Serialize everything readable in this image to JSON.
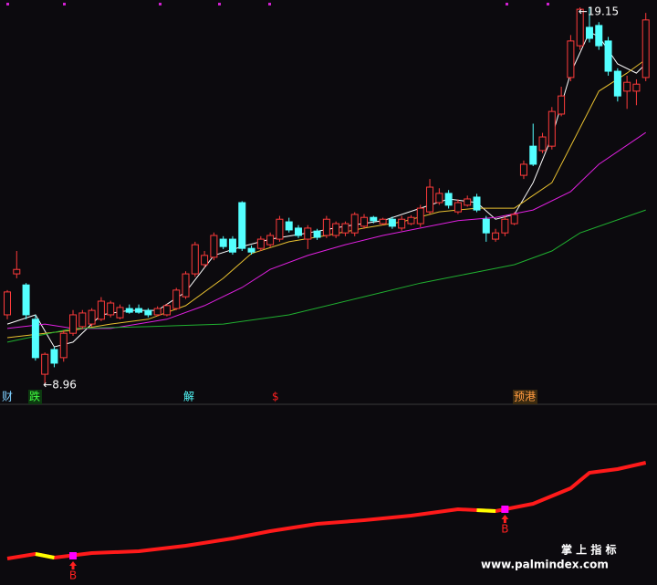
{
  "chart_data": {
    "type": "candlestick",
    "up_color": "#ff3b3b",
    "down_color": "#54ffff",
    "ylim": [
      8.47,
      19.35
    ],
    "open": [
      10.82,
      11.93,
      11.63,
      10.7,
      9.21,
      9.88,
      9.66,
      10.32,
      10.5,
      10.57,
      10.7,
      10.82,
      10.74,
      10.99,
      10.99,
      10.94,
      10.82,
      10.82,
      10.99,
      11.31,
      11.93,
      12.18,
      12.38,
      12.87,
      12.87,
      13.86,
      12.62,
      12.62,
      12.72,
      12.87,
      13.34,
      13.17,
      12.87,
      13.09,
      12.97,
      12.97,
      13.04,
      13.04,
      13.22,
      13.46,
      13.29,
      13.41,
      13.17,
      13.29,
      13.29,
      13.61,
      13.86,
      14.11,
      13.61,
      13.79,
      14.01,
      13.41,
      12.87,
      13.04,
      13.29,
      14.6,
      15.39,
      15.27,
      15.39,
      16.26,
      17.25,
      18.11,
      18.61,
      18.66,
      18.24,
      17.42,
      16.88,
      16.88,
      17.25
    ],
    "high": [
      11.49,
      12.55,
      11.68,
      10.82,
      9.8,
      9.95,
      10.4,
      10.95,
      10.95,
      11.0,
      11.3,
      11.2,
      11.1,
      11.1,
      11.1,
      11.0,
      11.05,
      11.12,
      11.55,
      12.0,
      12.8,
      12.55,
      13.05,
      12.95,
      12.95,
      13.9,
      12.7,
      12.95,
      13.05,
      13.5,
      13.45,
      13.25,
      13.25,
      13.15,
      13.5,
      13.35,
      13.35,
      13.6,
      13.55,
      13.5,
      13.45,
      13.48,
      13.5,
      13.52,
      13.8,
      14.5,
      14.25,
      14.2,
      13.95,
      14.05,
      14.1,
      13.5,
      13.15,
      13.5,
      13.6,
      15.0,
      16.0,
      15.75,
      16.45,
      17.0,
      18.4,
      19.15,
      19.15,
      18.75,
      18.35,
      17.5,
      17.3,
      17.2,
      19.0
    ],
    "low": [
      10.7,
      11.81,
      10.7,
      9.58,
      8.96,
      9.4,
      9.55,
      10.25,
      10.45,
      10.5,
      10.65,
      10.75,
      10.7,
      10.85,
      10.85,
      10.75,
      10.78,
      10.78,
      10.95,
      11.25,
      11.85,
      12.1,
      12.3,
      12.6,
      12.45,
      12.55,
      12.45,
      12.55,
      12.65,
      12.8,
      13.05,
      12.9,
      12.6,
      12.85,
      12.9,
      12.9,
      12.95,
      12.95,
      13.15,
      13.3,
      13.25,
      13.15,
      13.1,
      13.25,
      13.2,
      13.55,
      13.8,
      13.7,
      13.55,
      13.75,
      13.6,
      12.8,
      12.8,
      12.95,
      13.25,
      14.5,
      14.85,
      15.2,
      15.3,
      16.2,
      17.15,
      18.0,
      18.2,
      18.0,
      17.3,
      16.6,
      16.4,
      16.5,
      17.15
    ],
    "close": [
      11.44,
      12.05,
      10.82,
      9.66,
      9.75,
      9.51,
      10.32,
      10.82,
      10.87,
      10.94,
      11.19,
      11.14,
      11.02,
      10.89,
      10.89,
      10.82,
      10.99,
      11.07,
      11.49,
      11.93,
      12.72,
      12.43,
      12.97,
      12.67,
      12.52,
      12.62,
      12.52,
      12.87,
      12.97,
      13.41,
      13.12,
      12.97,
      13.17,
      12.92,
      13.41,
      13.29,
      13.29,
      13.54,
      13.46,
      13.37,
      13.41,
      13.22,
      13.41,
      13.46,
      13.71,
      14.28,
      14.11,
      13.79,
      13.86,
      13.96,
      13.66,
      13.04,
      13.04,
      13.41,
      13.54,
      14.9,
      14.9,
      15.64,
      16.33,
      16.75,
      18.24,
      19.1,
      18.31,
      18.11,
      17.42,
      16.75,
      17.12,
      17.07,
      18.81
    ],
    "series": [
      {
        "color": "#ffffff",
        "x": [
          0,
          3,
          5,
          7,
          10,
          13,
          16,
          19,
          22,
          25,
          28,
          32,
          36,
          40,
          44,
          47,
          50,
          52,
          54,
          56,
          58,
          60,
          62,
          63,
          65,
          67,
          68
        ],
        "values": [
          10.57,
          10.82,
          9.95,
          10.08,
          10.82,
          10.94,
          10.94,
          11.44,
          12.43,
          12.67,
          12.87,
          13.04,
          13.22,
          13.37,
          13.71,
          13.96,
          13.86,
          13.41,
          13.54,
          14.4,
          15.64,
          17.37,
          18.48,
          18.36,
          17.62,
          17.37,
          17.62
        ]
      },
      {
        "color": "#e8c030",
        "x": [
          0,
          4,
          7,
          11,
          15,
          19,
          23,
          26,
          30,
          34,
          38,
          42,
          46,
          50,
          54,
          58,
          60,
          63,
          66,
          68
        ],
        "values": [
          10.2,
          10.32,
          10.4,
          10.57,
          10.7,
          11.07,
          11.81,
          12.48,
          12.8,
          12.97,
          13.17,
          13.34,
          13.61,
          13.71,
          13.71,
          14.4,
          15.39,
          16.88,
          17.37,
          17.74
        ]
      },
      {
        "color": "#e020e0",
        "x": [
          0,
          4,
          7,
          11,
          17,
          21,
          25,
          28,
          32,
          36,
          40,
          44,
          48,
          52,
          56,
          60,
          63,
          68
        ],
        "values": [
          10.45,
          10.57,
          10.45,
          10.45,
          10.7,
          11.07,
          11.56,
          12.05,
          12.43,
          12.72,
          12.97,
          13.17,
          13.37,
          13.46,
          13.66,
          14.16,
          14.9,
          15.76
        ]
      },
      {
        "color": "#20b030",
        "x": [
          0,
          7,
          15,
          23,
          30,
          38,
          44,
          50,
          54,
          58,
          61,
          68
        ],
        "values": [
          10.08,
          10.45,
          10.5,
          10.57,
          10.82,
          11.31,
          11.68,
          11.98,
          12.18,
          12.55,
          13.04,
          13.66
        ]
      }
    ],
    "low_marker": {
      "value": 8.96,
      "label": "←8.96"
    },
    "high_marker": {
      "value": 19.15,
      "label": "←19.15"
    },
    "signals": [
      "财",
      "跌",
      "解",
      "$",
      "预港"
    ],
    "indicator": {
      "ylim": [
        0,
        100
      ],
      "color": "#ff1a1a",
      "x": [
        0,
        3,
        5,
        9,
        14,
        19,
        24,
        28,
        33,
        38,
        43,
        48,
        52,
        56,
        60,
        62,
        65,
        68
      ],
      "values": [
        14,
        16.5,
        14.5,
        17,
        18,
        21,
        25,
        29,
        33,
        35,
        37.5,
        41,
        40,
        44,
        52.5,
        61,
        63,
        66.5
      ],
      "highlights": [
        {
          "color": "#ffff00",
          "x": [
            3,
            5
          ],
          "values": [
            16.5,
            14.5
          ]
        },
        {
          "color": "#ffff00",
          "x": [
            50,
            52
          ],
          "values": [
            40.5,
            40
          ]
        }
      ],
      "signal_points": {
        "color": "#ff00ff",
        "x": [
          7,
          53
        ],
        "values": [
          15.5,
          41
        ],
        "labels": [
          "B",
          "B"
        ]
      }
    },
    "watermark": {
      "title": "掌 上 指 标",
      "url": "www.palmindex.com"
    }
  }
}
